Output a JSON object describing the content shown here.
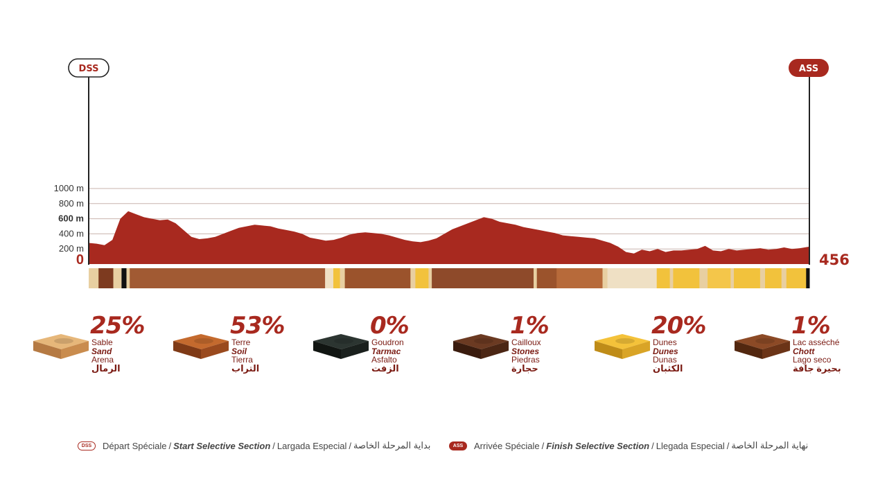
{
  "start": {
    "label": "DSS"
  },
  "finish": {
    "label": "ASS",
    "distance_km": "456"
  },
  "chart_data": {
    "type": "area",
    "title": "",
    "xlabel": "",
    "ylabel": "",
    "y_unit": "m",
    "ylim": [
      0,
      1000
    ],
    "yticks": [
      "1000 m",
      "800 m",
      "600 m",
      "400 m",
      "200 m",
      "0"
    ],
    "ytick_values": [
      1000,
      800,
      600,
      400,
      200,
      0
    ],
    "grid": true,
    "fill_color": "#a8291f",
    "x_range_km": [
      0,
      456
    ],
    "x": [
      0,
      5,
      10,
      15,
      20,
      25,
      30,
      35,
      40,
      45,
      50,
      55,
      60,
      65,
      70,
      75,
      80,
      85,
      90,
      95,
      100,
      105,
      110,
      115,
      120,
      125,
      130,
      135,
      140,
      145,
      150,
      155,
      160,
      165,
      170,
      175,
      180,
      185,
      190,
      195,
      200,
      205,
      210,
      215,
      220,
      225,
      230,
      235,
      240,
      245,
      250,
      255,
      260,
      265,
      270,
      275,
      280,
      285,
      290,
      295,
      300,
      305,
      310,
      315,
      320,
      325,
      330,
      335,
      340,
      345,
      350,
      355,
      360,
      365,
      370,
      375,
      380,
      385,
      390,
      395,
      400,
      405,
      410,
      415,
      420,
      425,
      430,
      435,
      440,
      445,
      450,
      456
    ],
    "elevation": [
      280,
      270,
      250,
      320,
      600,
      700,
      660,
      620,
      600,
      580,
      590,
      540,
      450,
      360,
      330,
      340,
      360,
      400,
      440,
      480,
      500,
      520,
      510,
      500,
      470,
      450,
      430,
      400,
      350,
      330,
      310,
      320,
      350,
      390,
      410,
      420,
      410,
      400,
      380,
      350,
      320,
      300,
      290,
      310,
      340,
      400,
      460,
      500,
      540,
      580,
      620,
      600,
      560,
      540,
      520,
      490,
      470,
      450,
      430,
      410,
      380,
      370,
      360,
      350,
      340,
      310,
      280,
      230,
      160,
      140,
      190,
      170,
      200,
      160,
      180,
      180,
      190,
      200,
      240,
      180,
      170,
      200,
      180,
      190,
      200,
      210,
      190,
      200,
      220,
      200,
      210,
      230
    ]
  },
  "surface_strip": {
    "colors": [
      "#e8cfa1",
      "#7d3a1f",
      "#e8cfa1",
      "#111111",
      "#e8cfa1",
      "#a15a33",
      "#efe0c4",
      "#f2c23c",
      "#e8cfa1",
      "#9b532c",
      "#e8cfa1",
      "#f2c23c",
      "#e8cfa1",
      "#8e4a2a",
      "#e8cfa1",
      "#9b532c",
      "#b76a3a",
      "#e8cfa1",
      "#efe0c4",
      "#f2c23c",
      "#e8cfa1",
      "#f2c23c",
      "#e8cfa1",
      "#f4c64a",
      "#e8cfa1",
      "#f2c23c",
      "#e8cfa1",
      "#f2c23c",
      "#e8cfa1",
      "#f2c23c",
      "#111111"
    ],
    "widths": [
      6,
      9,
      5,
      3,
      2,
      119,
      5,
      4,
      3,
      40,
      3,
      8,
      2,
      62,
      2,
      12,
      28,
      3,
      30,
      8,
      2,
      16,
      5,
      14,
      2,
      16,
      3,
      10,
      3,
      12,
      2
    ]
  },
  "terrains": [
    {
      "pct": "25%",
      "fr": "Sable",
      "en": "Sand",
      "es": "Arena",
      "ar": "الرمال",
      "icon": "sand-block-icon",
      "top": "#e6b77a",
      "side": "#c98c4e",
      "front": "#b57a43"
    },
    {
      "pct": "53%",
      "fr": "Terre",
      "en": "Soil",
      "es": "Tierra",
      "ar": "التراب",
      "icon": "soil-block-icon",
      "top": "#c46a2e",
      "side": "#9a4a1e",
      "front": "#7f3a16"
    },
    {
      "pct": "0%",
      "fr": "Goudron",
      "en": "Tarmac",
      "es": "Asfalto",
      "ar": "الزفت",
      "icon": "tarmac-block-icon",
      "top": "#2c3531",
      "side": "#1a201d",
      "front": "#111512"
    },
    {
      "pct": "1%",
      "fr": "Cailloux",
      "en": "Stones",
      "es": "Piedras",
      "ar": "حجارة",
      "icon": "stones-block-icon",
      "top": "#6b3a22",
      "side": "#4b2614",
      "front": "#3a1c0e"
    },
    {
      "pct": "20%",
      "fr": "Dunes",
      "en": "Dunes",
      "es": "Dunas",
      "ar": "الكثبان",
      "icon": "dunes-block-icon",
      "top": "#f4c23a",
      "side": "#d9a426",
      "front": "#bf8c18"
    },
    {
      "pct": "1%",
      "fr": "Lac asséché",
      "en": "Chott",
      "es": "Lago seco",
      "ar": "بحيرة جافة",
      "icon": "dry-lake-block-icon",
      "top": "#8c4a26",
      "side": "#6b3417",
      "front": "#52270f"
    }
  ],
  "legend": {
    "dss": {
      "badge": "DSS",
      "fr": "Départ Spéciale",
      "en": "Start Selective Section",
      "es": "Largada Especial",
      "ar": "بداية المرحلة الخاصة"
    },
    "ass": {
      "badge": "ASS",
      "fr": "Arrivée Spéciale",
      "en": "Finish Selective Section",
      "es": "Llegada Especial",
      "ar": "نهاية المرحلة الخاصة"
    }
  }
}
